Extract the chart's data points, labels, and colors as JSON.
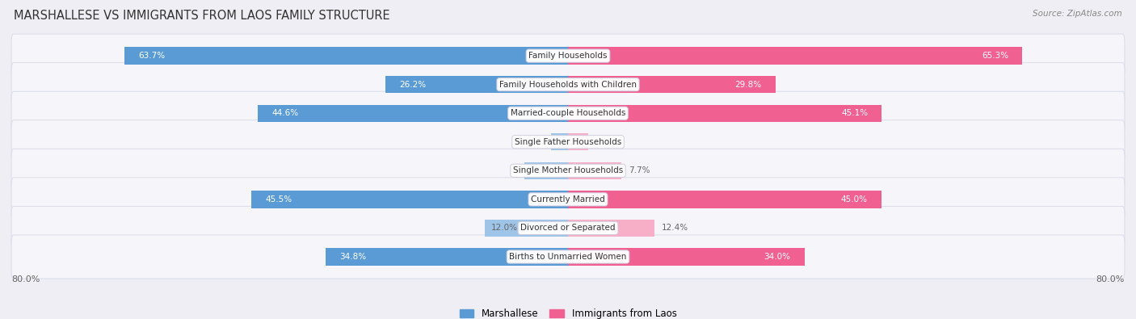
{
  "title": "MARSHALLESE VS IMMIGRANTS FROM LAOS FAMILY STRUCTURE",
  "source": "Source: ZipAtlas.com",
  "categories": [
    "Family Households",
    "Family Households with Children",
    "Married-couple Households",
    "Single Father Households",
    "Single Mother Households",
    "Currently Married",
    "Divorced or Separated",
    "Births to Unmarried Women"
  ],
  "marshallese": [
    63.7,
    26.2,
    44.6,
    2.4,
    6.3,
    45.5,
    12.0,
    34.8
  ],
  "laos": [
    65.3,
    29.8,
    45.1,
    2.9,
    7.7,
    45.0,
    12.4,
    34.0
  ],
  "max_val": 80.0,
  "color_marshallese_dark": "#5b9bd5",
  "color_marshallese_light": "#9ec4e8",
  "color_laos_dark": "#f06090",
  "color_laos_light": "#f7afc7",
  "bg_color": "#eeeef4",
  "row_bg_light": "#f5f5fa",
  "row_bg_dark": "#ebebf2",
  "title_color": "#333333",
  "source_color": "#888888",
  "value_color_inside": "#ffffff",
  "value_color_outside": "#666666",
  "label_threshold": 20,
  "bar_height": 0.6,
  "title_fontsize": 10.5,
  "source_fontsize": 7.5,
  "bar_fontsize": 7.5,
  "cat_fontsize": 7.5,
  "legend_fontsize": 8.5,
  "legend_label_marshallese": "Marshallese",
  "legend_label_laos": "Immigrants from Laos"
}
